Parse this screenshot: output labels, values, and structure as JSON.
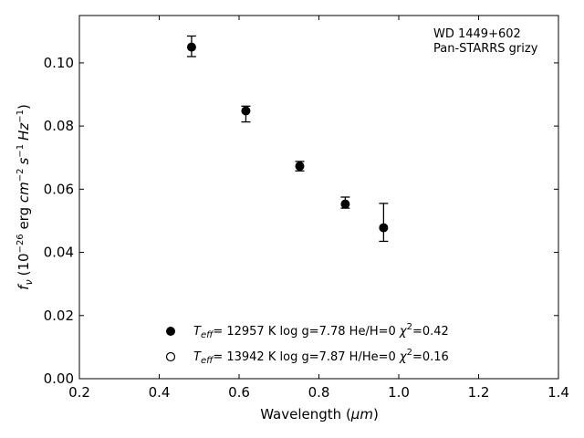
{
  "chart_data": {
    "type": "scatter",
    "xlabel_main": "Wavelength (",
    "xlabel_unit": "μm",
    "xlabel_close": ")",
    "ylabel_f": "f",
    "ylabel_nu": "ν",
    "ylabel_units_a": "(10",
    "ylabel_exp_a": "−26",
    "ylabel_units_b": " erg ",
    "ylabel_cm": "cm",
    "ylabel_exp_b": "−2",
    "ylabel_s": "s",
    "ylabel_exp_c": "−1",
    "ylabel_hz": "Hz",
    "ylabel_exp_d": "−1",
    "ylabel_close": ")",
    "xlim": [
      0.2,
      1.4
    ],
    "ylim": [
      0.0,
      0.115
    ],
    "xticks": [
      0.2,
      0.4,
      0.6,
      0.8,
      1.0,
      1.2,
      1.4
    ],
    "xtick_labels": [
      "0.2",
      "0.4",
      "0.6",
      "0.8",
      "1.0",
      "1.2",
      "1.4"
    ],
    "yticks": [
      0.0,
      0.02,
      0.04,
      0.06,
      0.08,
      0.1
    ],
    "ytick_labels": [
      "0.00",
      "0.02",
      "0.04",
      "0.06",
      "0.08",
      "0.10"
    ],
    "grid": false,
    "annotation": {
      "line1": "WD 1449+602",
      "line2": "Pan-STARRS grizy",
      "placement": "top-right"
    },
    "series": [
      {
        "marker": "filled",
        "color": "#000000",
        "x": [
          0.481,
          0.617,
          0.752,
          0.866,
          0.962
        ],
        "y": [
          0.105,
          0.0848,
          0.0673,
          0.0553,
          0.0478
        ],
        "yerr_lo": [
          0.003,
          0.0035,
          0.0015,
          0.0013,
          0.0043
        ],
        "yerr_hi": [
          0.0035,
          0.0015,
          0.0015,
          0.0022,
          0.0077
        ]
      }
    ],
    "legend": {
      "placement": "lower-center",
      "entries": [
        {
          "marker": "filled",
          "t": "T",
          "t_sub": "eff",
          "text": "= 12957 K  log g=7.78  He/H=0  ",
          "chi": "χ",
          "chi_sup": "2",
          "chi_val": "=0.42"
        },
        {
          "marker": "open",
          "t": "T",
          "t_sub": "eff",
          "text": "= 13942 K  log g=7.87  H/He=0  ",
          "chi": "χ",
          "chi_sup": "2",
          "chi_val": "=0.16"
        }
      ]
    }
  }
}
